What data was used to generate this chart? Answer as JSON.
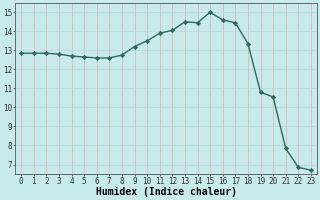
{
  "x": [
    0,
    1,
    2,
    3,
    4,
    5,
    6,
    7,
    8,
    9,
    10,
    11,
    12,
    13,
    14,
    15,
    16,
    17,
    18,
    19,
    20,
    21,
    22,
    23
  ],
  "y": [
    12.85,
    12.85,
    12.85,
    12.8,
    12.7,
    12.65,
    12.6,
    12.6,
    12.75,
    13.2,
    13.5,
    13.9,
    14.05,
    14.5,
    14.45,
    15.0,
    14.6,
    14.45,
    13.35,
    10.8,
    10.55,
    7.85,
    6.85,
    6.7
  ],
  "line_color": "#2d6b5e",
  "marker": "D",
  "marker_size": 2.2,
  "bg_color": "#c8eaea",
  "grid_color_v": "#d8b0b0",
  "grid_color_h": "#b8d8d8",
  "xlabel": "Humidex (Indice chaleur)",
  "xlabel_fontsize": 7,
  "ylim": [
    6.5,
    15.5
  ],
  "yticks": [
    7,
    8,
    9,
    10,
    11,
    12,
    13,
    14,
    15
  ],
  "xlim": [
    -0.5,
    23.5
  ],
  "xticks": [
    0,
    1,
    2,
    3,
    4,
    5,
    6,
    7,
    8,
    9,
    10,
    11,
    12,
    13,
    14,
    15,
    16,
    17,
    18,
    19,
    20,
    21,
    22,
    23
  ],
  "tick_fontsize": 5.5,
  "line_width": 1.0
}
